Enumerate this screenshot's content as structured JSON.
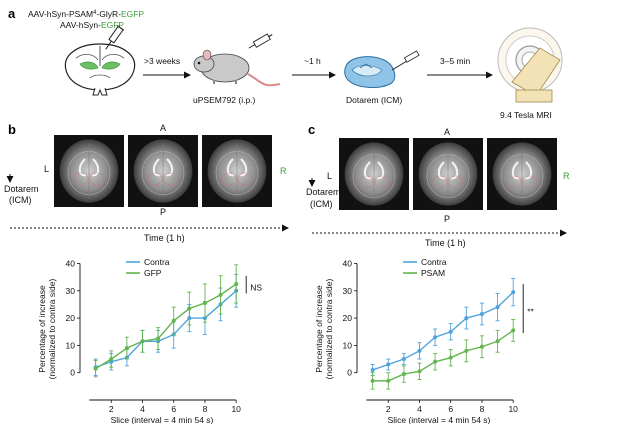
{
  "colors": {
    "blue": "#4ea3dc",
    "green": "#63b54e",
    "label_green": "#3a9c3a",
    "mri_bg": "#111111",
    "beige": "#f2e2b6"
  },
  "panel_a": {
    "letter": "a",
    "virus_line1_prefix": "AAV-hSyn-PSAM",
    "virus_line1_sup": "4",
    "virus_line1_mid": "-GlyR-",
    "virus_line1_green": "EGFP",
    "virus_line2_prefix": "AAV-hSyn-",
    "virus_line2_green": "EGFP",
    "step1_time": ">3 weeks",
    "mouse_label": "uPSEM792 (i.p.)",
    "step2_time": "~1 h",
    "brain_label": "Dotarem (ICM)",
    "step3_time": "3–5 min",
    "mri_label": "9.4 Tesla MRI"
  },
  "panel_b": {
    "letter": "b",
    "orient_top": "A",
    "orient_left": "L",
    "orient_right": "R",
    "orient_bottom": "P",
    "dotarem_line1": "Dotarem",
    "dotarem_line2": "(ICM)",
    "time_label": "Time (1 h)"
  },
  "panel_c": {
    "letter": "c",
    "orient_top": "A",
    "orient_left": "L",
    "orient_right": "R",
    "orient_bottom": "P",
    "dotarem_line1": "Dotarem",
    "dotarem_line2": "(ICM)",
    "time_label": "Time (1 h)"
  },
  "chart_data": [
    {
      "type": "line",
      "panel": "b",
      "xlabel": "Slice (interval = 4 min 54 s)",
      "ylabel_line1": "Percentage of increase",
      "ylabel_line2": "(normalized to contra side)",
      "xlim": [
        0,
        10.5
      ],
      "ylim": [
        -10,
        42
      ],
      "xticks": [
        2,
        4,
        6,
        8,
        10
      ],
      "yticks": [
        0,
        10,
        20,
        30,
        40
      ],
      "x": [
        1,
        2,
        3,
        4,
        5,
        6,
        7,
        8,
        9,
        10
      ],
      "series": [
        {
          "name": "Contra",
          "color": "#4ea3dc",
          "values": [
            2,
            4,
            5.5,
            11.5,
            11.5,
            14,
            20,
            20,
            25,
            30
          ],
          "errors": [
            3,
            3,
            3,
            4,
            4,
            5,
            5,
            6,
            6,
            6
          ]
        },
        {
          "name": "GFP",
          "color": "#63b54e",
          "values": [
            1.5,
            5,
            9,
            11.5,
            12.5,
            19,
            23.5,
            25.5,
            28.5,
            32.5
          ],
          "errors": [
            3,
            3,
            4,
            4,
            4,
            5,
            6,
            7,
            7,
            7
          ]
        }
      ],
      "significance": "NS",
      "legend_position": "top-left"
    },
    {
      "type": "line",
      "panel": "c",
      "xlabel": "Slice (interval = 4 min 54 s)",
      "ylabel_line1": "Percentage of increase",
      "ylabel_line2": "(normalized to contra side)",
      "xlim": [
        0,
        10.5
      ],
      "ylim": [
        -10,
        42
      ],
      "xticks": [
        2,
        4,
        6,
        8,
        10
      ],
      "yticks": [
        0,
        10,
        20,
        30,
        40
      ],
      "x": [
        1,
        2,
        3,
        4,
        5,
        6,
        7,
        8,
        9,
        10
      ],
      "series": [
        {
          "name": "Contra",
          "color": "#4ea3dc",
          "values": [
            1,
            3,
            5,
            8,
            13,
            15,
            20,
            21.5,
            24,
            29.5
          ],
          "errors": [
            2,
            2,
            2,
            3,
            3,
            3,
            4,
            4,
            5,
            5
          ]
        },
        {
          "name": "PSAM",
          "color": "#63b54e",
          "values": [
            -3,
            -3,
            -0.5,
            0.5,
            4,
            5.5,
            8,
            9.5,
            11.5,
            15.5
          ],
          "errors": [
            3,
            3,
            3,
            3,
            3,
            3,
            4,
            4,
            4,
            4
          ]
        }
      ],
      "significance": "**",
      "legend_position": "top-left"
    }
  ]
}
